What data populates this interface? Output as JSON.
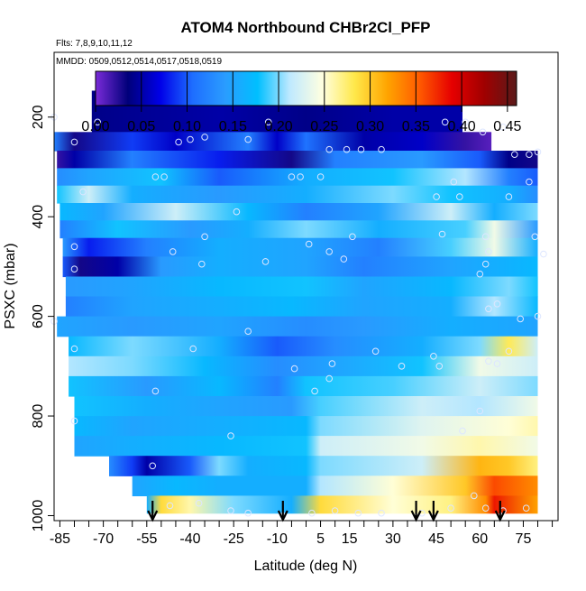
{
  "chart_data": {
    "type": "heatmap",
    "title": "ATOM4 Northbound CHBr2Cl_PFP",
    "flights_note": "Flts: 7,8,9,10,11,12",
    "dates_note": "MMDD: 0509,0512,0514,0517,0518,0519",
    "xlabel": "Latitude (deg N)",
    "ylabel": "PSXC (mbar)",
    "xlim": [
      -87,
      87
    ],
    "ylim": [
      1010,
      70
    ],
    "x_ticks": [
      -85,
      -70,
      -55,
      -40,
      -25,
      -10,
      5,
      15,
      30,
      45,
      60,
      75
    ],
    "x_tick_labels": [
      "-85",
      "-70",
      "-55",
      "-40",
      "-25",
      "-10",
      "5",
      "15",
      "30",
      "45",
      "60",
      "75"
    ],
    "y_ticks": [
      200,
      400,
      600,
      800,
      1000
    ],
    "y_tick_labels": [
      "200",
      "400",
      "600",
      "800",
      "1000"
    ],
    "colorbar": {
      "min": 0.0,
      "max": 0.46,
      "ticks": [
        0.0,
        0.05,
        0.1,
        0.15,
        0.2,
        0.25,
        0.3,
        0.35,
        0.4,
        0.45
      ],
      "tick_labels": [
        "0.00",
        "0.05",
        "0.10",
        "0.15",
        "0.20",
        "0.25",
        "0.30",
        "0.35",
        "0.40",
        "0.45"
      ],
      "colors": [
        "#7a2bd8",
        "#00007a",
        "#0000e8",
        "#1e6eff",
        "#2a9cff",
        "#00bfff",
        "#bfe9ff",
        "#ffffe0",
        "#ffe84a",
        "#ffa500",
        "#ff5a00",
        "#e60000",
        "#a00000",
        "#5a1a1a"
      ]
    },
    "layer_pressures": [
      170,
      210,
      250,
      285,
      320,
      355,
      390,
      425,
      460,
      500,
      540,
      580,
      620,
      660,
      700,
      740,
      780,
      820,
      860,
      900,
      940,
      980
    ],
    "rows": [
      {
        "p": 210,
        "x0": -74,
        "x1": 54,
        "stops": [
          [
            -74,
            0.04
          ],
          [
            -30,
            0.05
          ],
          [
            0,
            0.04
          ],
          [
            30,
            0.05
          ],
          [
            54,
            0.05
          ]
        ]
      },
      {
        "p": 250,
        "x0": -87,
        "x1": 64,
        "stops": [
          [
            -87,
            0.12
          ],
          [
            -80,
            0.03
          ],
          [
            -60,
            0.09
          ],
          [
            -45,
            0.06
          ],
          [
            -20,
            0.12
          ],
          [
            -10,
            0.06
          ],
          [
            0,
            0.11
          ],
          [
            20,
            0.05
          ],
          [
            40,
            0.06
          ],
          [
            55,
            0.02
          ],
          [
            64,
            0.01
          ]
        ]
      },
      {
        "p": 285,
        "x0": -86,
        "x1": 80,
        "stops": [
          [
            -86,
            0.02
          ],
          [
            -80,
            0.05
          ],
          [
            -60,
            0.12
          ],
          [
            -30,
            0.08
          ],
          [
            -5,
            0.03
          ],
          [
            10,
            0.12
          ],
          [
            40,
            0.14
          ],
          [
            60,
            0.1
          ],
          [
            70,
            0.04
          ],
          [
            80,
            0.03
          ]
        ]
      },
      {
        "p": 320,
        "x0": -86,
        "x1": 80,
        "stops": [
          [
            -86,
            0.13
          ],
          [
            -75,
            0.15
          ],
          [
            -50,
            0.18
          ],
          [
            -30,
            0.1
          ],
          [
            0,
            0.16
          ],
          [
            30,
            0.18
          ],
          [
            55,
            0.21
          ],
          [
            70,
            0.12
          ],
          [
            80,
            0.1
          ]
        ]
      },
      {
        "p": 355,
        "x0": -86,
        "x1": 80,
        "stops": [
          [
            -86,
            0.18
          ],
          [
            -75,
            0.22
          ],
          [
            -60,
            0.16
          ],
          [
            -30,
            0.14
          ],
          [
            0,
            0.16
          ],
          [
            30,
            0.2
          ],
          [
            50,
            0.18
          ],
          [
            70,
            0.16
          ],
          [
            80,
            0.13
          ]
        ]
      },
      {
        "p": 390,
        "x0": -85,
        "x1": 80,
        "stops": [
          [
            -85,
            0.17
          ],
          [
            -70,
            0.15
          ],
          [
            -45,
            0.22
          ],
          [
            -20,
            0.17
          ],
          [
            0,
            0.12
          ],
          [
            25,
            0.15
          ],
          [
            50,
            0.22
          ],
          [
            65,
            0.16
          ],
          [
            80,
            0.2
          ]
        ]
      },
      {
        "p": 425,
        "x0": -85,
        "x1": 80,
        "stops": [
          [
            -85,
            0.12
          ],
          [
            -65,
            0.18
          ],
          [
            -40,
            0.14
          ],
          [
            -20,
            0.16
          ],
          [
            0,
            0.2
          ],
          [
            25,
            0.16
          ],
          [
            55,
            0.19
          ],
          [
            65,
            0.24
          ],
          [
            80,
            0.14
          ]
        ]
      },
      {
        "p": 460,
        "x0": -84,
        "x1": 80,
        "stops": [
          [
            -84,
            0.14
          ],
          [
            -75,
            0.08
          ],
          [
            -55,
            0.12
          ],
          [
            -30,
            0.16
          ],
          [
            0,
            0.15
          ],
          [
            25,
            0.12
          ],
          [
            50,
            0.19
          ],
          [
            65,
            0.24
          ],
          [
            80,
            0.16
          ]
        ]
      },
      {
        "p": 500,
        "x0": -84,
        "x1": 80,
        "stops": [
          [
            -84,
            0.1
          ],
          [
            -78,
            0.03
          ],
          [
            -65,
            0.05
          ],
          [
            -50,
            0.14
          ],
          [
            -30,
            0.16
          ],
          [
            0,
            0.15
          ],
          [
            20,
            0.12
          ],
          [
            50,
            0.15
          ],
          [
            80,
            0.17
          ]
        ]
      },
      {
        "p": 540,
        "x0": -83,
        "x1": 80,
        "stops": [
          [
            -83,
            0.14
          ],
          [
            -60,
            0.15
          ],
          [
            -30,
            0.17
          ],
          [
            0,
            0.18
          ],
          [
            20,
            0.15
          ],
          [
            50,
            0.17
          ],
          [
            70,
            0.2
          ],
          [
            80,
            0.18
          ]
        ]
      },
      {
        "p": 580,
        "x0": -83,
        "x1": 80,
        "stops": [
          [
            -83,
            0.12
          ],
          [
            -60,
            0.15
          ],
          [
            -30,
            0.16
          ],
          [
            -5,
            0.17
          ],
          [
            20,
            0.15
          ],
          [
            50,
            0.16
          ],
          [
            65,
            0.21
          ],
          [
            80,
            0.17
          ]
        ]
      },
      {
        "p": 620,
        "x0": -86,
        "x1": 80,
        "stops": [
          [
            -86,
            0.15
          ],
          [
            -60,
            0.14
          ],
          [
            -30,
            0.15
          ],
          [
            0,
            0.13
          ],
          [
            20,
            0.14
          ],
          [
            50,
            0.16
          ],
          [
            80,
            0.15
          ]
        ]
      },
      {
        "p": 660,
        "x0": -82,
        "x1": 80,
        "stops": [
          [
            -82,
            0.17
          ],
          [
            -60,
            0.2
          ],
          [
            -30,
            0.16
          ],
          [
            -10,
            0.1
          ],
          [
            10,
            0.13
          ],
          [
            40,
            0.16
          ],
          [
            60,
            0.2
          ],
          [
            70,
            0.28
          ],
          [
            80,
            0.22
          ]
        ]
      },
      {
        "p": 700,
        "x0": -82,
        "x1": 80,
        "stops": [
          [
            -82,
            0.21
          ],
          [
            -60,
            0.2
          ],
          [
            -35,
            0.17
          ],
          [
            -10,
            0.13
          ],
          [
            10,
            0.15
          ],
          [
            40,
            0.18
          ],
          [
            60,
            0.24
          ],
          [
            80,
            0.22
          ]
        ]
      },
      {
        "p": 740,
        "x0": -82,
        "x1": 80,
        "stops": [
          [
            -82,
            0.18
          ],
          [
            -55,
            0.14
          ],
          [
            -30,
            0.17
          ],
          [
            -10,
            0.12
          ],
          [
            0,
            0.18
          ],
          [
            30,
            0.19
          ],
          [
            60,
            0.22
          ],
          [
            80,
            0.2
          ]
        ]
      },
      {
        "p": 780,
        "x0": -80,
        "x1": 80,
        "stops": [
          [
            -80,
            0.18
          ],
          [
            -55,
            0.16
          ],
          [
            -30,
            0.15
          ],
          [
            -5,
            0.14
          ],
          [
            5,
            0.19
          ],
          [
            40,
            0.22
          ],
          [
            60,
            0.21
          ],
          [
            80,
            0.24
          ]
        ]
      },
      {
        "p": 820,
        "x0": -80,
        "x1": 80,
        "stops": [
          [
            -80,
            0.17
          ],
          [
            -60,
            0.15
          ],
          [
            -30,
            0.16
          ],
          [
            0,
            0.17
          ],
          [
            5,
            0.2
          ],
          [
            40,
            0.23
          ],
          [
            70,
            0.25
          ],
          [
            80,
            0.26
          ]
        ]
      },
      {
        "p": 860,
        "x0": -80,
        "x1": 80,
        "stops": [
          [
            -80,
            0.15
          ],
          [
            -60,
            0.16
          ],
          [
            -30,
            0.17
          ],
          [
            0,
            0.18
          ],
          [
            5,
            0.22
          ],
          [
            40,
            0.24
          ],
          [
            60,
            0.26
          ],
          [
            80,
            0.24
          ]
        ]
      },
      {
        "p": 900,
        "x0": -68,
        "x1": 80,
        "stops": [
          [
            -68,
            0.13
          ],
          [
            -60,
            0.09
          ],
          [
            -55,
            0.05
          ],
          [
            -40,
            0.1
          ],
          [
            -30,
            0.2
          ],
          [
            -20,
            0.16
          ],
          [
            0,
            0.17
          ],
          [
            5,
            0.2
          ],
          [
            40,
            0.22
          ],
          [
            60,
            0.31
          ],
          [
            70,
            0.3
          ],
          [
            80,
            0.27
          ]
        ]
      },
      {
        "p": 940,
        "x0": -60,
        "x1": 80,
        "stops": [
          [
            -60,
            0.15
          ],
          [
            -45,
            0.17
          ],
          [
            -30,
            0.16
          ],
          [
            0,
            0.16
          ],
          [
            5,
            0.21
          ],
          [
            30,
            0.25
          ],
          [
            55,
            0.3
          ],
          [
            65,
            0.36
          ],
          [
            80,
            0.33
          ]
        ]
      },
      {
        "p": 980,
        "x0": -55,
        "x1": 80,
        "stops": [
          [
            -55,
            0.16
          ],
          [
            -50,
            0.29
          ],
          [
            -40,
            0.26
          ],
          [
            -25,
            0.2
          ],
          [
            -5,
            0.16
          ],
          [
            5,
            0.29
          ],
          [
            30,
            0.25
          ],
          [
            50,
            0.27
          ],
          [
            62,
            0.33
          ],
          [
            65,
            0.38
          ],
          [
            80,
            0.32
          ]
        ]
      }
    ],
    "sample_points": [
      [
        -87,
        200
      ],
      [
        -80,
        250
      ],
      [
        -72,
        210
      ],
      [
        -44,
        250
      ],
      [
        -40,
        245
      ],
      [
        -35,
        240
      ],
      [
        -20,
        245
      ],
      [
        -13,
        210
      ],
      [
        -5,
        320
      ],
      [
        -2,
        320
      ],
      [
        5,
        320
      ],
      [
        8,
        265
      ],
      [
        14,
        265
      ],
      [
        19,
        265
      ],
      [
        26,
        265
      ],
      [
        48,
        210
      ],
      [
        55,
        210
      ],
      [
        61,
        230
      ],
      [
        68,
        220
      ],
      [
        72,
        275
      ],
      [
        77,
        275
      ],
      [
        80,
        270
      ],
      [
        51,
        330
      ],
      [
        45,
        360
      ],
      [
        53,
        360
      ],
      [
        77,
        330
      ],
      [
        -52,
        320
      ],
      [
        -49,
        320
      ],
      [
        -77,
        350
      ],
      [
        -24,
        390
      ],
      [
        -35,
        440
      ],
      [
        -80,
        460
      ],
      [
        -46,
        470
      ],
      [
        -36,
        495
      ],
      [
        -80,
        505
      ],
      [
        -14,
        490
      ],
      [
        1,
        455
      ],
      [
        8,
        470
      ],
      [
        13,
        485
      ],
      [
        16,
        440
      ],
      [
        47,
        435
      ],
      [
        62,
        440
      ],
      [
        63,
        470
      ],
      [
        62,
        495
      ],
      [
        60,
        515
      ],
      [
        66,
        575
      ],
      [
        63,
        585
      ],
      [
        82,
        475
      ],
      [
        70,
        360
      ],
      [
        79,
        440
      ],
      [
        -87,
        610
      ],
      [
        -20,
        630
      ],
      [
        -80,
        665
      ],
      [
        -39,
        665
      ],
      [
        -4,
        705
      ],
      [
        9,
        695
      ],
      [
        24,
        670
      ],
      [
        33,
        700
      ],
      [
        44,
        680
      ],
      [
        46,
        700
      ],
      [
        63,
        690
      ],
      [
        66,
        695
      ],
      [
        70,
        670
      ],
      [
        74,
        605
      ],
      [
        80,
        600
      ],
      [
        -52,
        750
      ],
      [
        8,
        725
      ],
      [
        3,
        750
      ],
      [
        -80,
        810
      ],
      [
        -26,
        840
      ],
      [
        54,
        830
      ],
      [
        60,
        790
      ],
      [
        -53,
        900
      ],
      [
        -47,
        980
      ],
      [
        -37,
        975
      ],
      [
        -26,
        990
      ],
      [
        -20,
        995
      ],
      [
        -8,
        1000
      ],
      [
        2,
        995
      ],
      [
        10,
        990
      ],
      [
        18,
        995
      ],
      [
        26,
        995
      ],
      [
        40,
        995
      ],
      [
        50,
        985
      ],
      [
        58,
        960
      ],
      [
        62,
        985
      ],
      [
        68,
        990
      ],
      [
        76,
        985
      ]
    ],
    "arrow_markers_lat": [
      -53,
      -8,
      38,
      44,
      67
    ]
  }
}
